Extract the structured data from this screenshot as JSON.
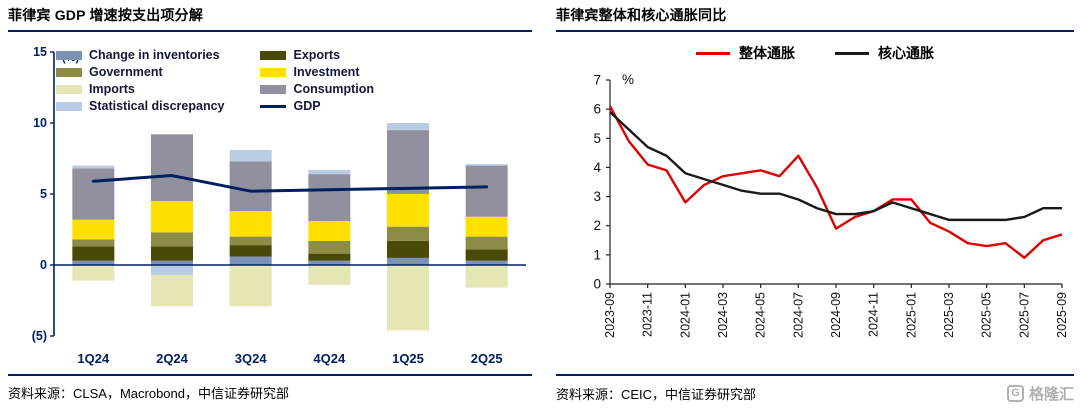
{
  "left_panel": {
    "title": "菲律宾 GDP 增速按支出项分解",
    "source": "资料来源：CLSA，Macrobond，中信证券研究部"
  },
  "right_panel": {
    "title": "菲律宾整体和核心通胀同比",
    "source": "资料来源：CEIC，中信证券研究部"
  },
  "logo": {
    "text": "格隆汇",
    "monogram": "G"
  },
  "colors": {
    "navy": "#002060",
    "headline_red": "#E00000",
    "core_black": "#1A1A1A"
  },
  "chart_data": [
    {
      "type": "bar",
      "subtype": "stacked-contributions-with-line",
      "title": "菲律宾 GDP 增速按支出项分解",
      "unit_label": "(%)",
      "categories": [
        "1Q24",
        "2Q24",
        "3Q24",
        "4Q24",
        "1Q25",
        "2Q25"
      ],
      "ylim": [
        -5,
        15
      ],
      "yticks": [
        15,
        10,
        5,
        0,
        -5
      ],
      "series": [
        {
          "name": "Change in inventories",
          "color": "#7D93B6",
          "values": [
            0.3,
            0.3,
            0.6,
            0.3,
            0.5,
            0.3
          ]
        },
        {
          "name": "Exports",
          "color": "#4A4A08",
          "values": [
            1.0,
            1.0,
            0.8,
            0.5,
            1.2,
            0.8
          ]
        },
        {
          "name": "Government",
          "color": "#8C8C46",
          "values": [
            0.5,
            1.0,
            0.6,
            0.9,
            1.0,
            0.9
          ]
        },
        {
          "name": "Investment",
          "color": "#FFE000",
          "values": [
            1.4,
            2.2,
            1.8,
            1.4,
            2.3,
            1.4
          ]
        },
        {
          "name": "Consumption",
          "color": "#90909E",
          "values": [
            3.6,
            4.7,
            3.5,
            3.3,
            4.5,
            3.6
          ]
        },
        {
          "name": "Statistical discrepancy",
          "color": "#B8CCE4",
          "values": [
            0.2,
            -0.7,
            0.8,
            0.3,
            0.5,
            0.1
          ]
        },
        {
          "name": "Imports",
          "color": "#E6E6B4",
          "values": [
            -1.1,
            -2.2,
            -2.9,
            -1.4,
            -4.6,
            -1.6
          ]
        }
      ],
      "line_series": {
        "name": "GDP",
        "color": "#002060",
        "values": [
          5.9,
          6.3,
          5.2,
          5.3,
          5.4,
          5.5
        ]
      },
      "legend": [
        {
          "label": "Change in inventories",
          "color": "#7D93B6",
          "type": "box"
        },
        {
          "label": "Exports",
          "color": "#4A4A08",
          "type": "box"
        },
        {
          "label": "Government",
          "color": "#8C8C46",
          "type": "box"
        },
        {
          "label": "Investment",
          "color": "#FFE000",
          "type": "box"
        },
        {
          "label": "Imports",
          "color": "#E6E6B4",
          "type": "box"
        },
        {
          "label": "Consumption",
          "color": "#90909E",
          "type": "box"
        },
        {
          "label": "Statistical discrepancy",
          "color": "#B8CCE4",
          "type": "box"
        },
        {
          "label": "GDP",
          "color": "#002060",
          "type": "line"
        }
      ],
      "legend_position": "top-inside",
      "grid": false
    },
    {
      "type": "line",
      "title": "菲律宾整体和核心通胀同比",
      "ylabel": "%",
      "ylim": [
        0,
        7
      ],
      "yticks": [
        0,
        1,
        2,
        3,
        4,
        5,
        6,
        7
      ],
      "xtick_every": 2,
      "x": [
        "2023-09",
        "2023-10",
        "2023-11",
        "2023-12",
        "2024-01",
        "2024-02",
        "2024-03",
        "2024-04",
        "2024-05",
        "2024-06",
        "2024-07",
        "2024-08",
        "2024-09",
        "2024-10",
        "2024-11",
        "2024-12",
        "2025-01",
        "2025-02",
        "2025-03",
        "2025-04",
        "2025-05",
        "2025-06",
        "2025-07",
        "2025-08",
        "2025-09"
      ],
      "series": [
        {
          "name": "整体通胀",
          "color": "#E00000",
          "values": [
            6.1,
            4.9,
            4.1,
            3.9,
            2.8,
            3.4,
            3.7,
            3.8,
            3.9,
            3.7,
            4.4,
            3.3,
            1.9,
            2.3,
            2.5,
            2.9,
            2.9,
            2.1,
            1.8,
            1.4,
            1.3,
            1.4,
            0.9,
            1.5,
            1.7
          ]
        },
        {
          "name": "核心通胀",
          "color": "#1A1A1A",
          "values": [
            5.9,
            5.3,
            4.7,
            4.4,
            3.8,
            3.6,
            3.4,
            3.2,
            3.1,
            3.1,
            2.9,
            2.6,
            2.4,
            2.4,
            2.5,
            2.8,
            2.6,
            2.4,
            2.2,
            2.2,
            2.2,
            2.2,
            2.3,
            2.6,
            2.6
          ]
        }
      ],
      "legend_position": "top",
      "grid": false
    }
  ]
}
